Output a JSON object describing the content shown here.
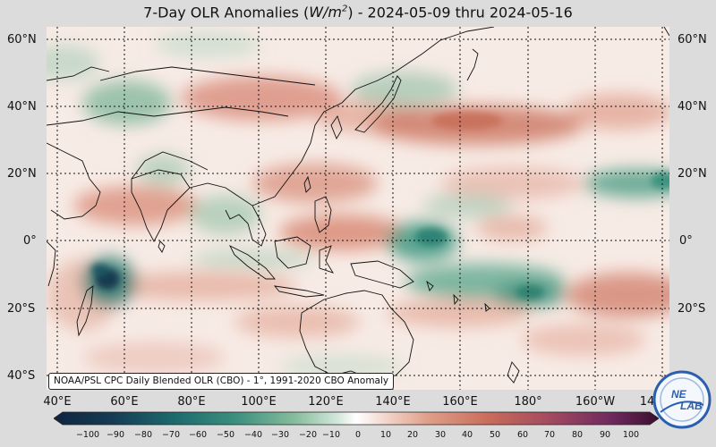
{
  "title": {
    "prefix": "7-Day OLR Anomalies (",
    "unit_base": "W/m",
    "unit_exp": "2",
    "suffix": ") - 2024-05-09 thru 2024-05-16"
  },
  "map": {
    "lat_labels": [
      "60°N",
      "40°N",
      "20°N",
      "0°",
      "20°S",
      "40°S"
    ],
    "lon_labels": [
      "40°E",
      "60°E",
      "80°E",
      "100°E",
      "120°E",
      "140°E",
      "160°E",
      "180°",
      "160°W",
      "14"
    ],
    "credit": "NOAA/PSL CPC Daily Blended OLR (CBO) - 1°, 1991-2020 CBO Anomaly",
    "gridlines": "dotted"
  },
  "colorbar": {
    "ticks": [
      "−100",
      "−90",
      "−80",
      "−70",
      "−60",
      "−50",
      "−40",
      "−30",
      "−20",
      "−10",
      "0",
      "10",
      "20",
      "30",
      "40",
      "50",
      "60",
      "70",
      "80",
      "90",
      "100"
    ],
    "negative_color": "#0f3a4f",
    "mid_color": "#ffffff",
    "positive_color": "#3b0f2f"
  },
  "logo": {
    "text_top": "NE",
    "text_bottom": "LAB",
    "accent": "#2a5fb0"
  }
}
